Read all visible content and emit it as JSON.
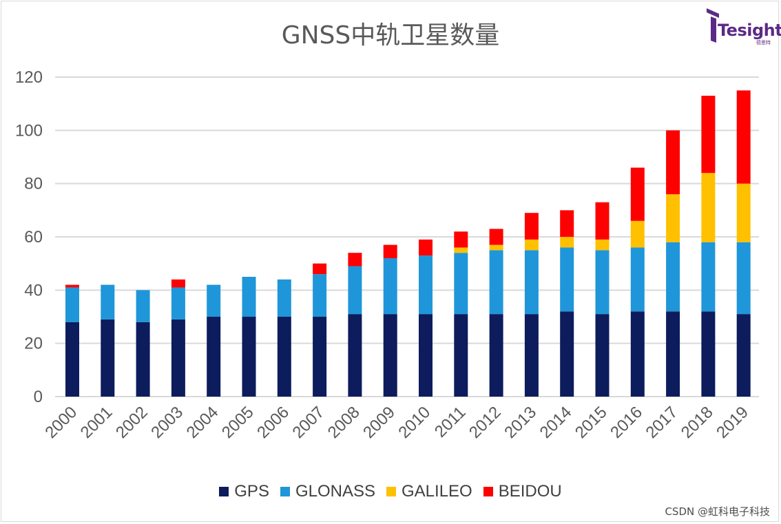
{
  "title": "GNSS中轨卫星数量",
  "logo": {
    "text": "Tesight",
    "sub": "德思特"
  },
  "watermark": "CSDN @虹科电子科技",
  "colors": {
    "GPS": "#0c1c5c",
    "GLONASS": "#1f96d9",
    "GALILEO": "#ffc000",
    "BEIDOU": "#ff0000",
    "grid": "#d9d9d9",
    "axis_text": "#595959"
  },
  "chart_data": {
    "type": "bar",
    "stacked": true,
    "title": "GNSS中轨卫星数量",
    "xlabel": "",
    "ylabel": "",
    "ylim": [
      0,
      120
    ],
    "yticks": [
      0,
      20,
      40,
      60,
      80,
      100,
      120
    ],
    "grid": true,
    "legend_position": "bottom",
    "categories": [
      "2000",
      "2001",
      "2002",
      "2003",
      "2004",
      "2005",
      "2006",
      "2007",
      "2008",
      "2009",
      "2010",
      "2011",
      "2012",
      "2013",
      "2014",
      "2015",
      "2016",
      "2017",
      "2018",
      "2019"
    ],
    "series": [
      {
        "name": "GPS",
        "color": "#0c1c5c",
        "values": [
          28,
          29,
          28,
          29,
          30,
          30,
          30,
          30,
          31,
          31,
          31,
          31,
          31,
          31,
          32,
          31,
          32,
          32,
          32,
          31
        ]
      },
      {
        "name": "GLONASS",
        "color": "#1f96d9",
        "values": [
          13,
          13,
          12,
          12,
          12,
          15,
          14,
          16,
          18,
          21,
          22,
          23,
          24,
          24,
          24,
          24,
          24,
          26,
          26,
          27
        ]
      },
      {
        "name": "GALILEO",
        "color": "#ffc000",
        "values": [
          0,
          0,
          0,
          0,
          0,
          0,
          0,
          0,
          0,
          0,
          0,
          2,
          2,
          4,
          4,
          4,
          10,
          18,
          26,
          22
        ]
      },
      {
        "name": "BEIDOU",
        "color": "#ff0000",
        "values": [
          1,
          0,
          0,
          3,
          0,
          0,
          0,
          4,
          5,
          5,
          6,
          6,
          6,
          10,
          10,
          14,
          20,
          24,
          29,
          35
        ]
      }
    ]
  }
}
